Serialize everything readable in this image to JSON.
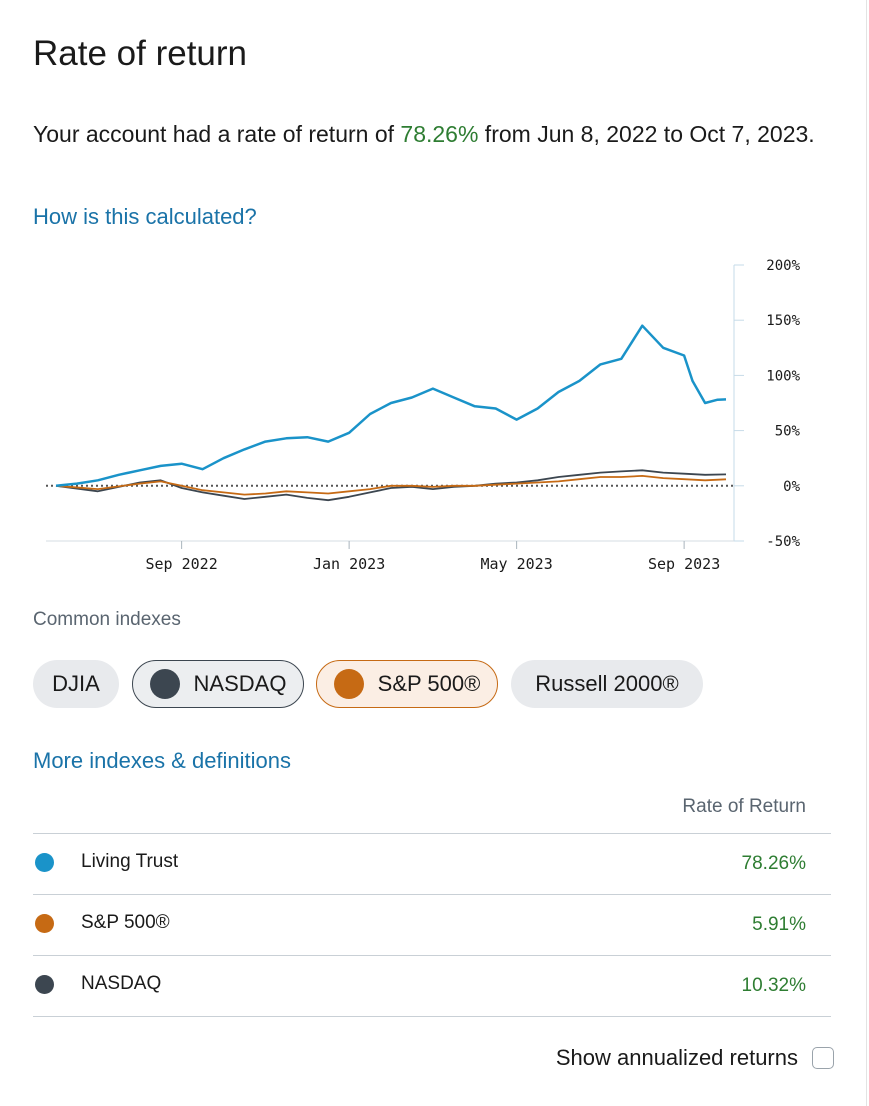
{
  "page": {
    "title": "Rate of return",
    "summary_prefix": "Your account had a rate of return of ",
    "summary_pct": "78.26%",
    "summary_suffix": " from Jun 8, 2022 to Oct 7, 2023.",
    "how_link": "How is this calculated?",
    "more_link": "More indexes & definitions"
  },
  "chart_data": {
    "type": "line",
    "title": "",
    "xlabel": "",
    "ylabel": "",
    "ylim": [
      -50,
      200
    ],
    "y_ticks": [
      200,
      150,
      100,
      50,
      0,
      -50
    ],
    "y_tick_labels": [
      "200%",
      "150%",
      "100%",
      "50%",
      "0%",
      "-50%"
    ],
    "x_ticks": [
      {
        "label": "Sep 2022",
        "month": 3
      },
      {
        "label": "Jan 2023",
        "month": 7
      },
      {
        "label": "May 2023",
        "month": 11
      },
      {
        "label": "Sep 2023",
        "month": 15
      }
    ],
    "x_range_months": [
      0,
      16
    ],
    "series": [
      {
        "name": "Living Trust",
        "color": "#1a93c9",
        "x": [
          0,
          0.5,
          1,
          1.5,
          2,
          2.5,
          3,
          3.5,
          4,
          4.5,
          5,
          5.5,
          6,
          6.5,
          7,
          7.5,
          8,
          8.5,
          9,
          9.5,
          10,
          10.5,
          11,
          11.5,
          12,
          12.5,
          13,
          13.5,
          14,
          14.5,
          15,
          15.2,
          15.5,
          15.8,
          16
        ],
        "values": [
          0,
          2,
          5,
          10,
          14,
          18,
          20,
          15,
          25,
          33,
          40,
          43,
          44,
          40,
          48,
          65,
          75,
          80,
          88,
          80,
          72,
          70,
          60,
          70,
          85,
          95,
          110,
          115,
          145,
          125,
          118,
          95,
          75,
          78,
          78.26
        ]
      },
      {
        "name": "S&P 500®",
        "color": "#c66a14",
        "x": [
          0,
          1,
          2,
          2.5,
          3,
          3.5,
          4,
          4.5,
          5,
          5.5,
          6,
          6.5,
          7,
          7.5,
          8,
          8.5,
          9,
          9.5,
          10,
          10.5,
          11,
          11.5,
          12,
          12.5,
          13,
          13.5,
          14,
          14.5,
          15,
          15.5,
          16
        ],
        "values": [
          0,
          -3,
          2,
          4,
          0,
          -4,
          -6,
          -8,
          -7,
          -5,
          -6,
          -7,
          -5,
          -3,
          0,
          0,
          -1,
          0,
          0,
          1,
          2,
          3,
          4,
          6,
          8,
          8,
          9,
          7,
          6,
          5,
          5.91
        ]
      },
      {
        "name": "NASDAQ",
        "color": "#3c4650",
        "x": [
          0,
          1,
          2,
          2.5,
          3,
          3.5,
          4,
          4.5,
          5,
          5.5,
          6,
          6.5,
          7,
          7.5,
          8,
          8.5,
          9,
          9.5,
          10,
          10.5,
          11,
          11.5,
          12,
          12.5,
          13,
          13.5,
          14,
          14.5,
          15,
          15.5,
          16
        ],
        "values": [
          0,
          -5,
          3,
          5,
          -2,
          -6,
          -9,
          -12,
          -10,
          -8,
          -11,
          -13,
          -10,
          -6,
          -2,
          -1,
          -3,
          -1,
          0,
          2,
          3,
          5,
          8,
          10,
          12,
          13,
          14,
          12,
          11,
          10,
          10.32
        ]
      }
    ]
  },
  "indexes": {
    "label": "Common indexes",
    "chips": [
      {
        "label": "DJIA",
        "selected": false
      },
      {
        "label": "NASDAQ",
        "selected": true,
        "color": "#3c4650"
      },
      {
        "label": "S&P 500®",
        "selected": true,
        "color": "#c66a14"
      },
      {
        "label": "Russell 2000®",
        "selected": false
      }
    ]
  },
  "table": {
    "header": "Rate of Return",
    "rows": [
      {
        "name": "Living Trust",
        "value": "78.26%",
        "color": "#1a93c9"
      },
      {
        "name": "S&P 500®",
        "value": "5.91%",
        "color": "#c66a14"
      },
      {
        "name": "NASDAQ",
        "value": "10.32%",
        "color": "#3c4650"
      }
    ]
  },
  "annualized": {
    "label": "Show annualized returns",
    "checked": false
  }
}
